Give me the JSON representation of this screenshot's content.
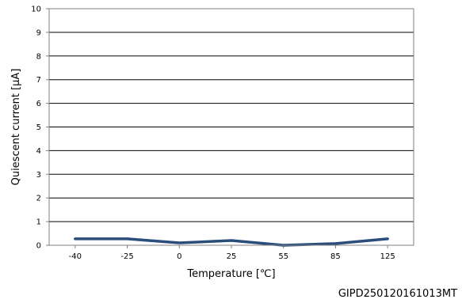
{
  "chart_data": {
    "type": "line",
    "title": "",
    "xlabel": "Temperature [℃]",
    "ylabel": "Quiescent current [μA]",
    "categories": [
      "-40",
      "-25",
      "0",
      "25",
      "55",
      "85",
      "125"
    ],
    "series": [
      {
        "name": "",
        "values": [
          0.27,
          0.27,
          0.1,
          0.2,
          0.0,
          0.07,
          0.27
        ],
        "color": "#2a4d7c"
      }
    ],
    "ylim": [
      0,
      10
    ],
    "yticks": [
      "0",
      "1",
      "2",
      "3",
      "4",
      "5",
      "6",
      "7",
      "8",
      "9",
      "10"
    ],
    "grid": true,
    "legend": "none"
  },
  "figure_id": "GIPD250120161013MT"
}
